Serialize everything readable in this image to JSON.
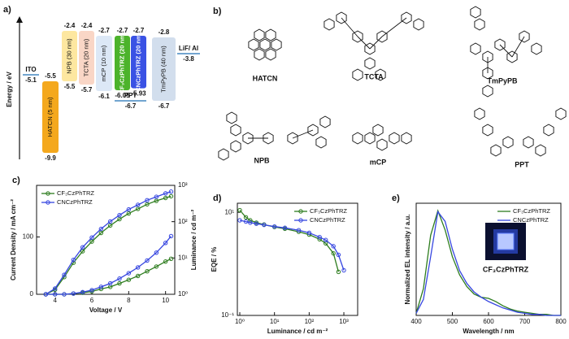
{
  "structures": {
    "panel_label": "b)",
    "molecules": [
      "HATCN",
      "TCTA",
      "TmPyPB",
      "NPB",
      "mCP",
      "PPT"
    ]
  },
  "chart_data": [
    {
      "type": "energy-level",
      "panel_label": "a)",
      "y_label": "Energy / eV",
      "ylim": [
        -10.2,
        -1.9
      ],
      "layers": [
        {
          "name": "HATCN (5 nm)",
          "lumo": -5.5,
          "homo": -9.9,
          "color": "#f4a81d"
        },
        {
          "name": "NPB (30 nm)",
          "lumo": -2.4,
          "homo": -5.5,
          "color": "#fde7a0"
        },
        {
          "name": "TCTA (20 nm)",
          "lumo": -2.4,
          "homo": -5.7,
          "color": "#f9d6c6"
        },
        {
          "name": "mCP (10 nm)",
          "lumo": -2.7,
          "homo": -6.1,
          "color": "#dce8f6"
        },
        {
          "name": "CF₃CzPhTRZ (20 nm)",
          "lumo": -2.7,
          "homo": -6.05,
          "color": "#4cb32b"
        },
        {
          "name": "CNCzPhTRZ (20 nm)",
          "lumo": -2.7,
          "homo": -5.93,
          "color": "#3a52e4"
        },
        {
          "name": "TmPyPB (40 nm)",
          "lumo": -2.8,
          "homo": -6.7,
          "color": "#d2deed"
        }
      ],
      "levels": [
        {
          "name": "ITO",
          "value": -5.1
        },
        {
          "name": "LiF/ Al",
          "value": -3.8
        },
        {
          "name": "PPT",
          "value": -6.7
        }
      ]
    },
    {
      "type": "line",
      "panel_label": "c)",
      "x_label": "Voltage / V",
      "y_label": "Current Density / mA cm⁻²",
      "y2_label": "Luminance / cd m⁻²",
      "xlim": [
        3,
        10.5
      ],
      "xticks": [
        4,
        6,
        8,
        10
      ],
      "ylim": [
        0,
        190
      ],
      "yticks": [
        0,
        100
      ],
      "y2lim": [
        1,
        1000
      ],
      "y2scale": "log",
      "y2ticks": [
        {
          "value": 1,
          "label": "10⁰"
        },
        {
          "value": 10,
          "label": "10¹"
        },
        {
          "value": 100,
          "label": "10²"
        },
        {
          "value": 1000,
          "label": "10³"
        }
      ],
      "markers": true,
      "legend": "upper left",
      "x": [
        3.5,
        4,
        4.5,
        5,
        5.5,
        6,
        6.5,
        7,
        7.5,
        8,
        8.5,
        9,
        9.5,
        10,
        10.3
      ],
      "series": [
        {
          "name": "CF₃CzPhTRZ",
          "color": "#2e7d1f",
          "values": [
            0,
            8,
            30,
            55,
            75,
            92,
            107,
            120,
            131,
            141,
            149,
            157,
            163,
            168,
            171
          ],
          "y2_values": [
            1,
            1,
            1,
            1.05,
            1.1,
            1.2,
            1.4,
            1.6,
            2,
            2.5,
            3.2,
            4.3,
            5.8,
            8,
            9.5
          ]
        },
        {
          "name": "CNCzPhTRZ",
          "color": "#3646e0",
          "values": [
            0,
            10,
            34,
            60,
            82,
            99,
            114,
            127,
            138,
            148,
            156,
            164,
            170,
            176,
            179
          ],
          "y2_values": [
            1,
            1,
            1,
            1.05,
            1.15,
            1.3,
            1.6,
            2,
            2.7,
            3.8,
            5.5,
            8.5,
            14,
            26,
            40
          ]
        }
      ]
    },
    {
      "type": "line",
      "panel_label": "d)",
      "x_label": "Luminance / cd m⁻²",
      "y_label": "EQE / %",
      "xlim": [
        0.85,
        2500
      ],
      "xscale": "log",
      "xticks": [
        {
          "value": 1,
          "label": "10⁰"
        },
        {
          "value": 10,
          "label": "10¹"
        },
        {
          "value": 100,
          "label": "10²"
        },
        {
          "value": 1000,
          "label": "10³"
        }
      ],
      "ylim": [
        0.1,
        15
      ],
      "yscale": "log",
      "yticks": [
        {
          "value": 0.1,
          "label": "10⁻¹"
        },
        {
          "value": 10,
          "label": "10¹"
        }
      ],
      "markers": true,
      "legend": "upper right",
      "x": [
        1,
        1.5,
        2,
        3,
        5,
        10,
        20,
        50,
        100,
        200,
        300,
        500,
        700,
        1000
      ],
      "series": [
        {
          "name": "CF₃CzPhTRZ",
          "color": "#2e7d1f",
          "values": [
            11,
            8,
            7,
            6.3,
            5.8,
            5.2,
            4.8,
            4.2,
            3.7,
            3,
            2.5,
            1.6,
            0.7,
            null
          ]
        },
        {
          "name": "CNCzPhTRZ",
          "color": "#3646e0",
          "values": [
            7,
            6.6,
            6.3,
            6,
            5.7,
            5.3,
            5,
            4.5,
            4,
            3.3,
            2.9,
            2.2,
            1.5,
            0.75
          ]
        }
      ]
    },
    {
      "type": "line",
      "panel_label": "e)",
      "x_label": "Wavelength / nm",
      "y_label": "Normalized EL intensity / a.u.",
      "inset_label": "CF₃CzPhTRZ",
      "xlim": [
        400,
        800
      ],
      "xticks": [
        400,
        500,
        600,
        700,
        800
      ],
      "ylim": [
        0,
        1.05
      ],
      "markers": false,
      "legend": "upper right",
      "x": [
        400,
        420,
        440,
        460,
        480,
        500,
        520,
        540,
        560,
        580,
        600,
        620,
        640,
        660,
        680,
        700,
        720,
        740,
        760,
        780,
        800
      ],
      "series": [
        {
          "name": "CF₃CzPhTRZ",
          "color": "#2e7d1f",
          "values": [
            0.02,
            0.25,
            0.75,
            0.98,
            0.8,
            0.55,
            0.38,
            0.27,
            0.2,
            0.17,
            0.16,
            0.13,
            0.09,
            0.06,
            0.04,
            0.03,
            0.02,
            0.01,
            0.01,
            0,
            0
          ]
        },
        {
          "name": "CNCzPhTRZ",
          "color": "#3646e0",
          "values": [
            0.02,
            0.15,
            0.55,
            0.97,
            0.88,
            0.62,
            0.42,
            0.3,
            0.22,
            0.17,
            0.13,
            0.1,
            0.07,
            0.05,
            0.03,
            0.02,
            0.01,
            0.01,
            0,
            0,
            0
          ]
        }
      ]
    }
  ]
}
